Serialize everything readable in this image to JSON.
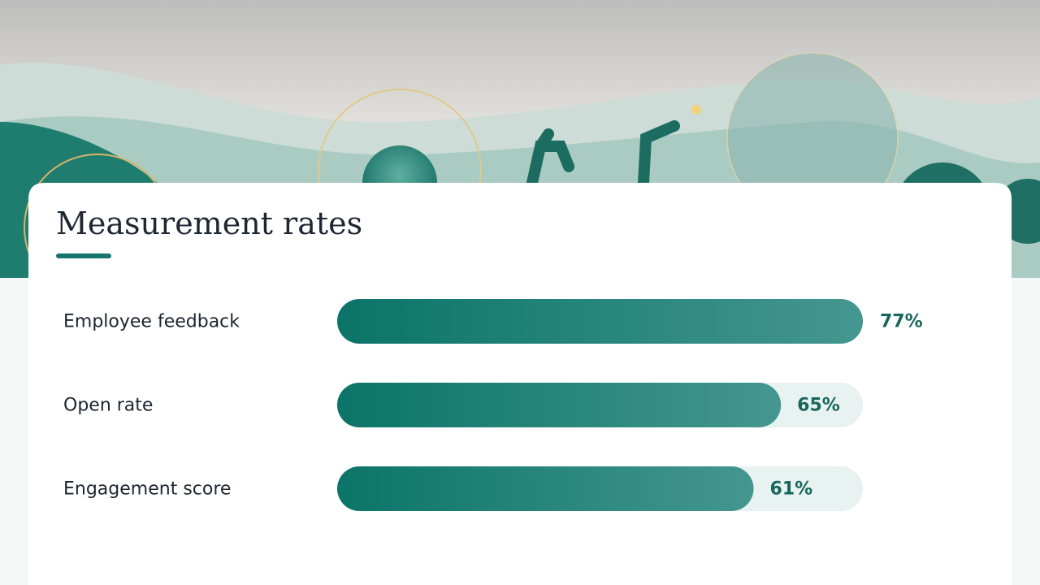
{
  "chart_data": {
    "type": "bar",
    "title": "Measurement rates",
    "categories": [
      "Employee feedback",
      "Open rate",
      "Engagement score"
    ],
    "values": [
      77,
      65,
      61
    ],
    "value_labels": [
      "77%",
      "65%",
      "61%"
    ],
    "color": "#0f7a6d",
    "track_color": "#e8f2f0"
  }
}
